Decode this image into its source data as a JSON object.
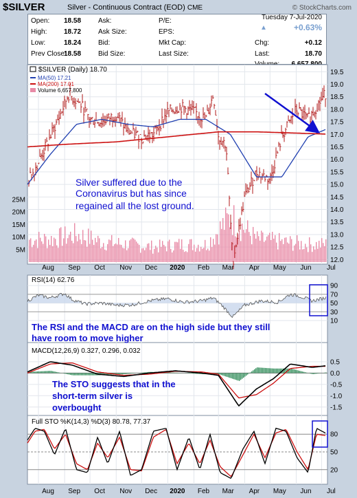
{
  "header": {
    "symbol": "$SILVER",
    "description": "Silver - Continuous Contract (EOD)",
    "exchange": "CME",
    "brand": "© StockCharts.com"
  },
  "quote": {
    "date": "Tuesday  7-Jul-2020",
    "pct_change": "+0.63%",
    "open_label": "Open:",
    "open": "18.58",
    "high_label": "High:",
    "high": "18.72",
    "low_label": "Low:",
    "low": "18.24",
    "prev_close_label": "Prev Close:",
    "prev_close": "18.58",
    "ask_label": "Ask:",
    "ask_size_label": "Ask Size:",
    "bid_label": "Bid:",
    "bid_size_label": "Bid Size:",
    "pe_label": "P/E:",
    "eps_label": "EPS:",
    "mktcap_label": "Mkt Cap:",
    "lastsize_label": "Last Size:",
    "chg_label": "Chg:",
    "chg": "+0.12",
    "last_label": "Last:",
    "last": "18.70",
    "volume_label": "Volume:",
    "volume": "6,657,800"
  },
  "annotations": {
    "price_note": [
      "Silver suffered due to the",
      "Coronavirus but has since",
      "regained all the lost ground."
    ],
    "rsi_note": [
      "The RSI and the MACD are on the high side but they still",
      "have room to move higher"
    ],
    "sto_note": [
      "The STO suggests that in the",
      "short-term silver is",
      "overbought"
    ]
  },
  "colors": {
    "price_bar": "#b01818",
    "ma50": "#1f3fb0",
    "ma200": "#cc1010",
    "volume": "#e88aa6",
    "rsi_line": "#000000",
    "rsi_fill": "#c9d7ec",
    "macd": "#000000",
    "signal": "#cc1010",
    "histogram": "#2e8b57",
    "sto_k": "#000000",
    "sto_d": "#cc1010",
    "annotation": "#1010d0",
    "highlight_box": "#1010d0"
  },
  "chart_data": [
    {
      "type": "line",
      "subtype": "ohlc-bars",
      "title": "$SILVER (Daily) 18.70",
      "legend": [
        "MA(50) 17.21",
        "MA(200) 17.01",
        "Volume 6,657,800"
      ],
      "legend_position": "top-left",
      "x_labels": [
        "Aug",
        "Sep",
        "Oct",
        "Nov",
        "Dec",
        "2020",
        "Feb",
        "Mar",
        "Apr",
        "May",
        "Jun",
        "Jul"
      ],
      "y_ticks": [
        "19.5",
        "19.0",
        "18.5",
        "18.0",
        "17.5",
        "17.0",
        "16.5",
        "16.0",
        "15.5",
        "15.0",
        "14.5",
        "14.0",
        "13.5",
        "13.0",
        "12.5",
        "12.0"
      ],
      "volume_ticks": [
        "25M",
        "20M",
        "15M",
        "10M",
        "5M"
      ],
      "ylim": [
        11.9,
        19.7
      ],
      "volume_max": "25M",
      "grid": true,
      "series": [
        {
          "name": "$SILVER (Daily)",
          "x": [
            "Jul-19",
            "Aug-1",
            "Aug-15",
            "Sep-1",
            "Sep-5",
            "Sep-20",
            "Oct-1",
            "Oct-15",
            "Nov-1",
            "Nov-15",
            "Dec-1",
            "Dec-15",
            "Jan-1",
            "Jan-15",
            "Feb-1",
            "Feb-15",
            "Feb-24",
            "Mar-1",
            "Mar-10",
            "Mar-18",
            "Apr-1",
            "Apr-15",
            "May-1",
            "May-15",
            "Jun-1",
            "Jun-15",
            "Jul-7"
          ],
          "values": [
            15.1,
            15.9,
            16.9,
            18.2,
            18.6,
            18.2,
            17.6,
            17.5,
            17.8,
            17.1,
            16.9,
            17.0,
            17.9,
            18.1,
            17.9,
            17.6,
            18.6,
            16.9,
            16.6,
            11.9,
            14.5,
            15.5,
            15.2,
            16.9,
            18.0,
            17.6,
            18.7
          ]
        },
        {
          "name": "MA(50)",
          "x": [
            "Jul-19",
            "Aug-15",
            "Sep-15",
            "Oct-15",
            "Nov-15",
            "Dec-15",
            "Jan-15",
            "Feb-15",
            "Mar-15",
            "Apr-15",
            "May-15",
            "Jun-15",
            "Jul-7"
          ],
          "values": [
            15.0,
            16.2,
            17.4,
            17.6,
            17.4,
            17.3,
            17.6,
            17.6,
            17.0,
            15.3,
            15.3,
            16.9,
            17.21
          ]
        },
        {
          "name": "MA(200)",
          "x": [
            "Jul-19",
            "Sep-1",
            "Nov-1",
            "Jan-1",
            "Mar-1",
            "Apr-15",
            "Jun-1",
            "Jul-7"
          ],
          "values": [
            16.5,
            16.6,
            16.7,
            16.9,
            17.1,
            17.1,
            17.05,
            17.01
          ]
        },
        {
          "name": "Volume",
          "x": [
            "Aug",
            "Sep",
            "Oct",
            "Nov",
            "Dec",
            "Jan",
            "Feb",
            "Mar",
            "Apr",
            "May",
            "Jun",
            "Jul"
          ],
          "values": [
            9,
            11,
            8,
            7,
            6,
            7,
            7,
            18,
            9,
            8,
            7,
            7
          ]
        }
      ]
    },
    {
      "type": "line",
      "title": "RSI(14) 62.76",
      "y_ticks": [
        "90",
        "70",
        "50",
        "30",
        "10"
      ],
      "ylim": [
        10,
        95
      ],
      "series": [
        {
          "name": "RSI(14)",
          "x": [
            "Jul-19",
            "Aug-1",
            "Aug-15",
            "Sep-1",
            "Sep-10",
            "Sep-25",
            "Oct-15",
            "Nov-1",
            "Nov-20",
            "Dec-10",
            "Jan-1",
            "Jan-20",
            "Feb-10",
            "Feb-24",
            "Mar-5",
            "Mar-18",
            "Apr-1",
            "Apr-20",
            "May-10",
            "May-25",
            "Jun-5",
            "Jun-20",
            "Jul-7"
          ],
          "values": [
            55,
            68,
            62,
            72,
            58,
            48,
            50,
            45,
            46,
            55,
            60,
            52,
            55,
            62,
            45,
            18,
            45,
            55,
            52,
            70,
            66,
            55,
            62.76
          ]
        }
      ]
    },
    {
      "type": "line",
      "title": "MACD(12,26,9) 0.327, 0.296, 0.032",
      "y_ticks": [
        "0.5",
        "0.0",
        "-0.5",
        "-1.0",
        "-1.5"
      ],
      "ylim": [
        -1.75,
        0.8
      ],
      "series": [
        {
          "name": "MACD(12,26,9)",
          "x": [
            "Jul-19",
            "Aug-15",
            "Sep-10",
            "Oct-10",
            "Nov-10",
            "Dec-10",
            "Jan-10",
            "Feb-10",
            "Mar-1",
            "Mar-25",
            "Apr-15",
            "May-5",
            "May-25",
            "Jun-20",
            "Jul-7"
          ],
          "values": [
            0.05,
            0.5,
            0.35,
            -0.05,
            -0.15,
            0.0,
            0.1,
            0.0,
            -0.1,
            -1.45,
            -0.7,
            -0.25,
            0.4,
            0.25,
            0.327
          ]
        },
        {
          "name": "Signal",
          "x": [
            "Jul-19",
            "Aug-15",
            "Sep-10",
            "Oct-10",
            "Nov-10",
            "Dec-10",
            "Jan-10",
            "Feb-10",
            "Mar-1",
            "Mar-25",
            "Apr-15",
            "May-5",
            "May-25",
            "Jun-20",
            "Jul-7"
          ],
          "values": [
            0.0,
            0.4,
            0.45,
            0.05,
            -0.1,
            -0.05,
            0.08,
            0.05,
            -0.05,
            -1.1,
            -0.95,
            -0.45,
            0.2,
            0.3,
            0.296
          ]
        },
        {
          "name": "Histogram",
          "x": [
            "Jul-19",
            "Aug-15",
            "Sep-10",
            "Oct-10",
            "Nov-10",
            "Dec-10",
            "Jan-10",
            "Feb-10",
            "Mar-1",
            "Mar-25",
            "Apr-15",
            "May-5",
            "May-25",
            "Jun-20",
            "Jul-7"
          ],
          "values": [
            0.05,
            0.1,
            -0.1,
            -0.1,
            -0.05,
            0.05,
            0.02,
            -0.05,
            -0.05,
            -0.35,
            0.25,
            0.2,
            0.2,
            -0.05,
            0.032
          ]
        }
      ]
    },
    {
      "type": "line",
      "title": "Full STO %K(14,3) %D(3) 80.78, 77.37",
      "y_ticks": [
        "80",
        "50",
        "20"
      ],
      "ylim": [
        0,
        100
      ],
      "series": [
        {
          "name": "%K(14,3)",
          "x": [
            "Jul-19",
            "Jul-28",
            "Aug-8",
            "Aug-20",
            "Sep-2",
            "Sep-15",
            "Sep-28",
            "Oct-10",
            "Oct-22",
            "Nov-5",
            "Nov-18",
            "Dec-1",
            "Dec-15",
            "Dec-30",
            "Jan-12",
            "Jan-26",
            "Feb-8",
            "Feb-20",
            "Mar-3",
            "Mar-16",
            "Mar-30",
            "Apr-12",
            "Apr-25",
            "May-8",
            "May-20",
            "Jun-2",
            "Jun-15",
            "Jun-25",
            "Jul-7"
          ],
          "values": [
            70,
            90,
            85,
            45,
            90,
            20,
            15,
            75,
            30,
            85,
            10,
            20,
            85,
            90,
            20,
            75,
            20,
            80,
            15,
            5,
            55,
            85,
            30,
            90,
            85,
            40,
            15,
            90,
            80.78
          ]
        },
        {
          "name": "%D(3)",
          "x": [
            "Jul-19",
            "Jul-28",
            "Aug-8",
            "Aug-20",
            "Sep-2",
            "Sep-15",
            "Sep-28",
            "Oct-10",
            "Oct-22",
            "Nov-5",
            "Nov-18",
            "Dec-1",
            "Dec-15",
            "Dec-30",
            "Jan-12",
            "Jan-26",
            "Feb-8",
            "Feb-20",
            "Mar-3",
            "Mar-16",
            "Mar-30",
            "Apr-12",
            "Apr-25",
            "May-8",
            "May-20",
            "Jun-2",
            "Jun-15",
            "Jun-25",
            "Jul-7"
          ],
          "values": [
            65,
            85,
            88,
            55,
            80,
            30,
            20,
            65,
            40,
            75,
            20,
            18,
            75,
            88,
            30,
            65,
            30,
            70,
            25,
            8,
            45,
            80,
            40,
            82,
            88,
            50,
            20,
            80,
            77.37
          ]
        }
      ]
    }
  ]
}
